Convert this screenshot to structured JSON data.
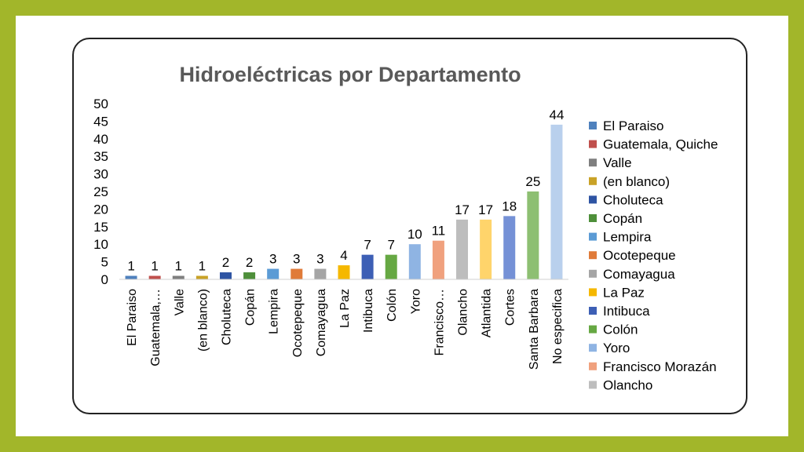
{
  "chart_data": {
    "type": "bar",
    "title": "Hidroeléctricas por Departamento",
    "xlabel": "",
    "ylabel": "",
    "ylim": [
      0,
      50
    ],
    "yticks": [
      0,
      5,
      10,
      15,
      20,
      25,
      30,
      35,
      40,
      45,
      50
    ],
    "grid": false,
    "legend_position": "right",
    "categories": [
      "El Paraiso",
      "Guatemala,…",
      "Valle",
      "(en blanco)",
      "Choluteca",
      "Copán",
      "Lempira",
      "Ocotepeque",
      "Comayagua",
      "La Paz",
      "Intibuca",
      "Colón",
      "Yoro",
      "Francisco…",
      "Olancho",
      "Atlantida",
      "Cortes",
      "Santa Barbara",
      "No especifica"
    ],
    "values": [
      1,
      1,
      1,
      1,
      2,
      2,
      3,
      3,
      3,
      4,
      7,
      7,
      10,
      11,
      17,
      17,
      18,
      25,
      44
    ],
    "colors": [
      "#4f81bd",
      "#c0504d",
      "#7f7f7f",
      "#c9a227",
      "#2e54a3",
      "#4e8f3a",
      "#5b9bd5",
      "#e07b39",
      "#a5a5a5",
      "#f5b800",
      "#3d5fb5",
      "#66a843",
      "#8fb4e3",
      "#f0a17e",
      "#bdbdbd",
      "#ffd46b",
      "#7591d6",
      "#8dbf72",
      "#b9d0ed"
    ],
    "legend": [
      "El Paraiso",
      "Guatemala, Quiche",
      "Valle",
      "(en blanco)",
      "Choluteca",
      "Copán",
      "Lempira",
      "Ocotepeque",
      "Comayagua",
      "La Paz",
      "Intibuca",
      "Colón",
      "Yoro",
      "Francisco Morazán",
      "Olancho"
    ],
    "data_labels": true
  }
}
